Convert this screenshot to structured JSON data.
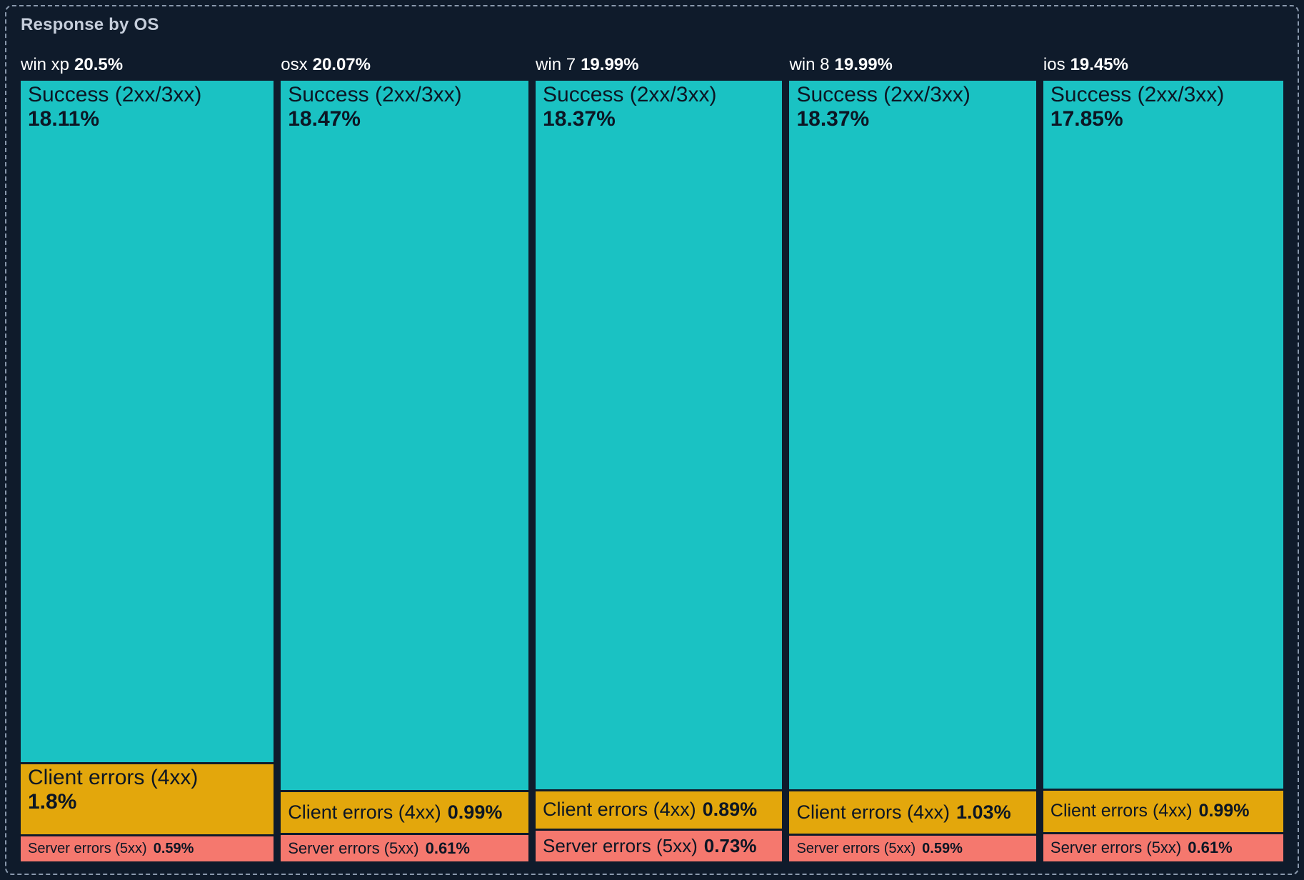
{
  "panel": {
    "title": "Response by OS"
  },
  "colors": {
    "background": "#0f1b2b",
    "panel_border": "#8a99ad",
    "title_text": "#c6cedb",
    "header_text": "#ffffff",
    "tile_text": "#0c1624",
    "success": "#1ac2c3",
    "client_errors": "#e3a70c",
    "server_errors": "#f5786e"
  },
  "chart_data": {
    "type": "treemap",
    "title": "Response by OS",
    "layout": "vertical slices per OS, horizontal sub-slices per response class",
    "groups": [
      {
        "os": "win xp",
        "total_pct": 20.5,
        "total_label": "20.5%",
        "segments": [
          {
            "name": "Success (2xx/3xx)",
            "kind": "success",
            "pct": 18.11,
            "label": "18.11%"
          },
          {
            "name": "Client errors (4xx)",
            "kind": "client_errors",
            "pct": 1.8,
            "label": "1.8%"
          },
          {
            "name": "Server errors (5xx)",
            "kind": "server_errors",
            "pct": 0.59,
            "label": "0.59%"
          }
        ]
      },
      {
        "os": "osx",
        "total_pct": 20.07,
        "total_label": "20.07%",
        "segments": [
          {
            "name": "Success (2xx/3xx)",
            "kind": "success",
            "pct": 18.47,
            "label": "18.47%"
          },
          {
            "name": "Client errors (4xx)",
            "kind": "client_errors",
            "pct": 0.99,
            "label": "0.99%"
          },
          {
            "name": "Server errors (5xx)",
            "kind": "server_errors",
            "pct": 0.61,
            "label": "0.61%"
          }
        ]
      },
      {
        "os": "win 7",
        "total_pct": 19.99,
        "total_label": "19.99%",
        "segments": [
          {
            "name": "Success (2xx/3xx)",
            "kind": "success",
            "pct": 18.37,
            "label": "18.37%"
          },
          {
            "name": "Client errors (4xx)",
            "kind": "client_errors",
            "pct": 0.89,
            "label": "0.89%"
          },
          {
            "name": "Server errors (5xx)",
            "kind": "server_errors",
            "pct": 0.73,
            "label": "0.73%"
          }
        ]
      },
      {
        "os": "win 8",
        "total_pct": 19.99,
        "total_label": "19.99%",
        "segments": [
          {
            "name": "Success (2xx/3xx)",
            "kind": "success",
            "pct": 18.37,
            "label": "18.37%"
          },
          {
            "name": "Client errors (4xx)",
            "kind": "client_errors",
            "pct": 1.03,
            "label": "1.03%"
          },
          {
            "name": "Server errors (5xx)",
            "kind": "server_errors",
            "pct": 0.59,
            "label": "0.59%"
          }
        ]
      },
      {
        "os": "ios",
        "total_pct": 19.45,
        "total_label": "19.45%",
        "segments": [
          {
            "name": "Success (2xx/3xx)",
            "kind": "success",
            "pct": 17.85,
            "label": "17.85%"
          },
          {
            "name": "Client errors (4xx)",
            "kind": "client_errors",
            "pct": 0.99,
            "label": "0.99%"
          },
          {
            "name": "Server errors (5xx)",
            "kind": "server_errors",
            "pct": 0.61,
            "label": "0.61%"
          }
        ]
      }
    ]
  }
}
